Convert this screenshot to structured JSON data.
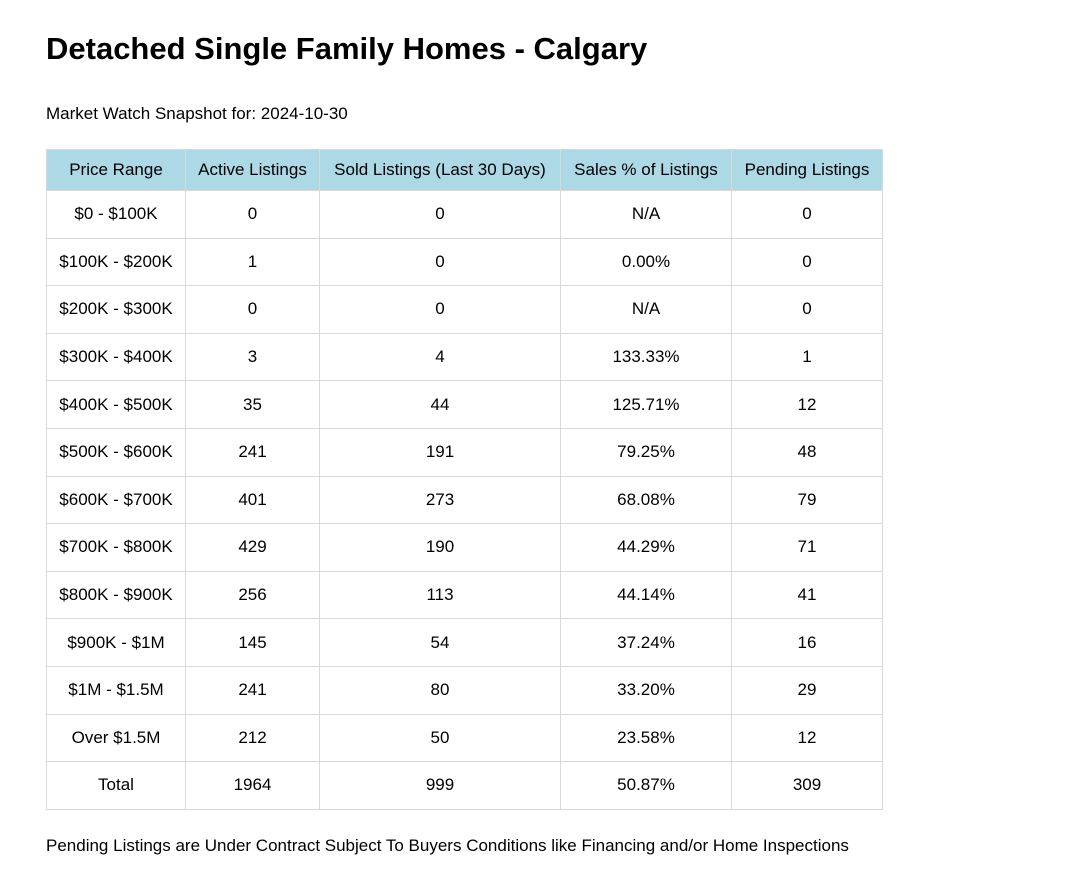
{
  "title": "Detached Single Family Homes - Calgary",
  "snapshot": "Market Watch Snapshot for: 2024-10-30",
  "table": {
    "headers": [
      "Price Range",
      "Active Listings",
      "Sold Listings (Last 30 Days)",
      "Sales % of Listings",
      "Pending Listings"
    ],
    "rows": [
      [
        "$0 - $100K",
        "0",
        "0",
        "N/A",
        "0"
      ],
      [
        "$100K - $200K",
        "1",
        "0",
        "0.00%",
        "0"
      ],
      [
        "$200K - $300K",
        "0",
        "0",
        "N/A",
        "0"
      ],
      [
        "$300K - $400K",
        "3",
        "4",
        "133.33%",
        "1"
      ],
      [
        "$400K - $500K",
        "35",
        "44",
        "125.71%",
        "12"
      ],
      [
        "$500K - $600K",
        "241",
        "191",
        "79.25%",
        "48"
      ],
      [
        "$600K - $700K",
        "401",
        "273",
        "68.08%",
        "79"
      ],
      [
        "$700K - $800K",
        "429",
        "190",
        "44.29%",
        "71"
      ],
      [
        "$800K - $900K",
        "256",
        "113",
        "44.14%",
        "41"
      ],
      [
        "$900K - $1M",
        "145",
        "54",
        "37.24%",
        "16"
      ],
      [
        "$1M - $1.5M",
        "241",
        "80",
        "33.20%",
        "29"
      ],
      [
        "Over $1.5M",
        "212",
        "50",
        "23.58%",
        "12"
      ],
      [
        "Total",
        "1964",
        "999",
        "50.87%",
        "309"
      ]
    ]
  },
  "footnote": "Pending Listings are Under Contract Subject To Buyers Conditions like Financing and/or Home Inspections",
  "colors": {
    "header_background": "#add8e6",
    "border": "#d9d9d9"
  }
}
